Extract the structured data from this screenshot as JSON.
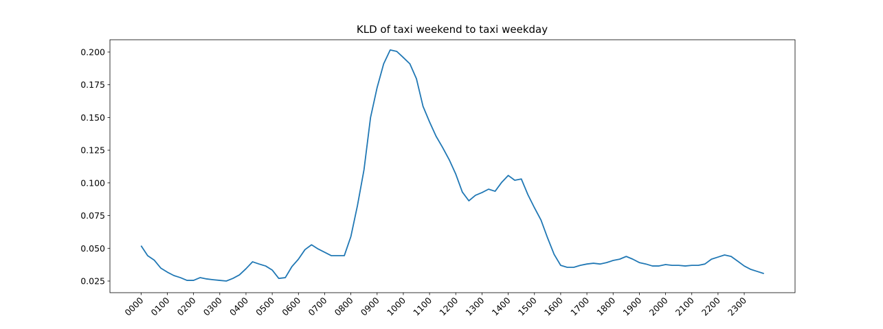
{
  "chart_data": {
    "type": "line",
    "title": "KLD of taxi weekend to taxi weekday",
    "x": [
      0,
      1,
      2,
      3,
      4,
      5,
      6,
      7,
      8,
      9,
      10,
      11,
      12,
      13,
      14,
      15,
      16,
      17,
      18,
      19,
      20,
      21,
      22,
      23,
      24,
      25,
      26,
      27,
      28,
      29,
      30,
      31,
      32,
      33,
      34,
      35,
      36,
      37,
      38,
      39,
      40,
      41,
      42,
      43,
      44,
      45,
      46,
      47,
      48,
      49,
      50,
      51,
      52,
      53,
      54,
      55,
      56,
      57,
      58,
      59,
      60,
      61,
      62,
      63,
      64,
      65,
      66,
      67,
      68,
      69,
      70,
      71,
      72,
      73,
      74,
      75,
      76,
      77,
      78,
      79,
      80,
      81,
      82,
      83,
      84,
      85,
      86,
      87,
      88,
      89,
      90,
      91,
      92,
      93,
      94,
      95
    ],
    "series": [
      {
        "color": "#1f77b4",
        "values": [
          0.052,
          0.0444,
          0.041,
          0.0349,
          0.0318,
          0.0292,
          0.0276,
          0.0255,
          0.0255,
          0.0276,
          0.0266,
          0.026,
          0.0255,
          0.025,
          0.027,
          0.0297,
          0.0344,
          0.0397,
          0.038,
          0.0365,
          0.0334,
          0.027,
          0.0276,
          0.036,
          0.0417,
          0.049,
          0.0527,
          0.0495,
          0.047,
          0.0444,
          0.0444,
          0.0444,
          0.059,
          0.0826,
          0.11,
          0.15,
          0.1728,
          0.191,
          0.2016,
          0.2005,
          0.1958,
          0.191,
          0.1796,
          0.1586,
          0.1466,
          0.1356,
          0.127,
          0.1177,
          0.1067,
          0.093,
          0.0863,
          0.0905,
          0.0926,
          0.0952,
          0.0936,
          0.1004,
          0.1057,
          0.102,
          0.103,
          0.091,
          0.081,
          0.0716,
          0.058,
          0.0454,
          0.037,
          0.0355,
          0.0355,
          0.037,
          0.038,
          0.0386,
          0.038,
          0.0391,
          0.0407,
          0.0417,
          0.0438,
          0.0417,
          0.0391,
          0.038,
          0.0365,
          0.0365,
          0.0376,
          0.037,
          0.037,
          0.0365,
          0.037,
          0.037,
          0.038,
          0.0417,
          0.0433,
          0.0449,
          0.0438,
          0.0402,
          0.0365,
          0.0339,
          0.0323,
          0.0307
        ]
      }
    ],
    "xlim": [
      -4.75,
      99.75
    ],
    "xticks": [
      {
        "value": 0,
        "label": "0000"
      },
      {
        "value": 4,
        "label": "0100"
      },
      {
        "value": 8,
        "label": "0200"
      },
      {
        "value": 12,
        "label": "0300"
      },
      {
        "value": 16,
        "label": "0400"
      },
      {
        "value": 20,
        "label": "0500"
      },
      {
        "value": 24,
        "label": "0600"
      },
      {
        "value": 28,
        "label": "0700"
      },
      {
        "value": 32,
        "label": "0800"
      },
      {
        "value": 36,
        "label": "0900"
      },
      {
        "value": 40,
        "label": "1000"
      },
      {
        "value": 44,
        "label": "1100"
      },
      {
        "value": 48,
        "label": "1200"
      },
      {
        "value": 52,
        "label": "1300"
      },
      {
        "value": 56,
        "label": "1400"
      },
      {
        "value": 60,
        "label": "1500"
      },
      {
        "value": 64,
        "label": "1600"
      },
      {
        "value": 68,
        "label": "1700"
      },
      {
        "value": 72,
        "label": "1800"
      },
      {
        "value": 76,
        "label": "1900"
      },
      {
        "value": 80,
        "label": "2000"
      },
      {
        "value": 84,
        "label": "2100"
      },
      {
        "value": 88,
        "label": "2200"
      },
      {
        "value": 92,
        "label": "2300"
      }
    ],
    "ylim": [
      0.0161,
      0.2094
    ],
    "yticks": [
      {
        "value": 0.025,
        "label": "0.025"
      },
      {
        "value": 0.05,
        "label": "0.050"
      },
      {
        "value": 0.075,
        "label": "0.075"
      },
      {
        "value": 0.1,
        "label": "0.100"
      },
      {
        "value": 0.125,
        "label": "0.125"
      },
      {
        "value": 0.15,
        "label": "0.150"
      },
      {
        "value": 0.175,
        "label": "0.175"
      },
      {
        "value": 0.2,
        "label": "0.200"
      }
    ]
  }
}
